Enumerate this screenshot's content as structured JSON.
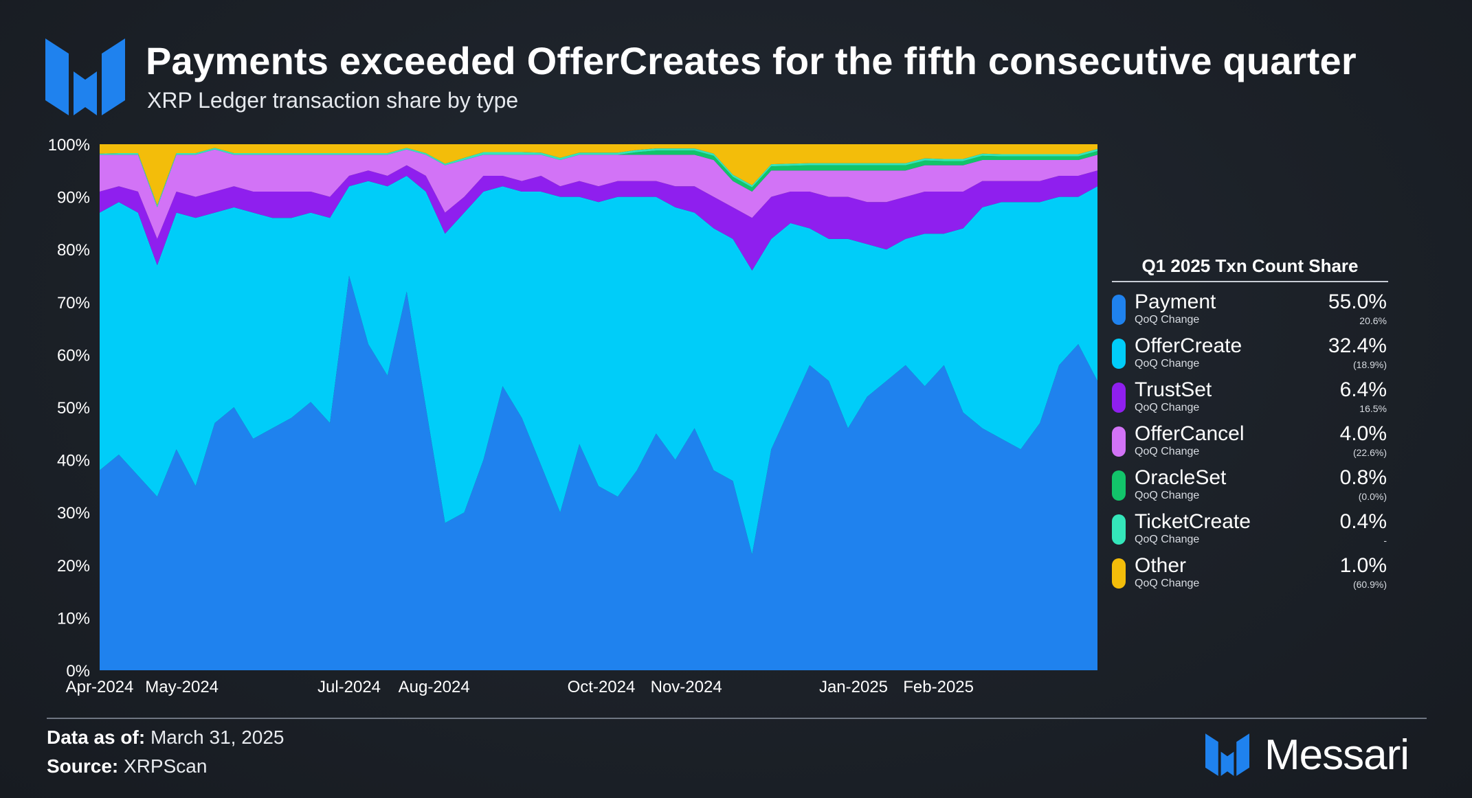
{
  "header": {
    "title": "Payments exceeded OfferCreates for the fifth consecutive quarter",
    "subtitle": "XRP Ledger transaction share by type"
  },
  "legend": {
    "title": "Q1 2025 Txn Count Share",
    "change_label": "QoQ Change",
    "items": [
      {
        "name": "Payment",
        "value": "55.0%",
        "change": "20.6%",
        "color": "#1f82ee"
      },
      {
        "name": "OfferCreate",
        "value": "32.4%",
        "change": "(18.9%)",
        "color": "#00cdf9"
      },
      {
        "name": "TrustSet",
        "value": "6.4%",
        "change": "16.5%",
        "color": "#8f1fee"
      },
      {
        "name": "OfferCancel",
        "value": "4.0%",
        "change": "(22.6%)",
        "color": "#d273f6"
      },
      {
        "name": "OracleSet",
        "value": "0.8%",
        "change": "(0.0%)",
        "color": "#12c46a"
      },
      {
        "name": "TicketCreate",
        "value": "0.4%",
        "change": "-",
        "color": "#34e6ba"
      },
      {
        "name": "Other",
        "value": "1.0%",
        "change": "(60.9%)",
        "color": "#f3bd0a"
      }
    ]
  },
  "footer": {
    "data_label": "Data as of:",
    "data_value": "March 31, 2025",
    "source_label": "Source:",
    "source_value": "XRPScan",
    "brand": "Messari"
  },
  "colors": {
    "brand_blue": "#1f82ee",
    "background": "#1c2128"
  },
  "chart_data": {
    "type": "area",
    "stacked": true,
    "ylim": [
      0,
      100
    ],
    "yticks": [
      "0%",
      "10%",
      "20%",
      "30%",
      "40%",
      "50%",
      "60%",
      "70%",
      "80%",
      "90%",
      "100%"
    ],
    "xticks": [
      "Apr-2024",
      "May-2024",
      "Jul-2024",
      "Aug-2024",
      "Oct-2024",
      "Nov-2024",
      "Jan-2025",
      "Feb-2025"
    ],
    "x_range": [
      "2024-04-01",
      "2025-03-31"
    ],
    "grid": false,
    "x": [
      "2024-04-01",
      "2024-04-08",
      "2024-04-15",
      "2024-04-22",
      "2024-04-29",
      "2024-05-06",
      "2024-05-13",
      "2024-05-20",
      "2024-05-27",
      "2024-06-03",
      "2024-06-10",
      "2024-06-17",
      "2024-06-24",
      "2024-07-01",
      "2024-07-08",
      "2024-07-15",
      "2024-07-22",
      "2024-07-29",
      "2024-08-05",
      "2024-08-12",
      "2024-08-19",
      "2024-08-26",
      "2024-09-02",
      "2024-09-09",
      "2024-09-16",
      "2024-09-23",
      "2024-09-30",
      "2024-10-07",
      "2024-10-14",
      "2024-10-21",
      "2024-10-28",
      "2024-11-04",
      "2024-11-11",
      "2024-11-18",
      "2024-11-25",
      "2024-12-02",
      "2024-12-09",
      "2024-12-16",
      "2024-12-23",
      "2024-12-30",
      "2025-01-06",
      "2025-01-13",
      "2025-01-20",
      "2025-01-27",
      "2025-02-03",
      "2025-02-10",
      "2025-02-17",
      "2025-02-24",
      "2025-03-03",
      "2025-03-10",
      "2025-03-17",
      "2025-03-24",
      "2025-03-31"
    ],
    "series": [
      {
        "name": "Payment",
        "color": "#1f82ee",
        "values": [
          38,
          41,
          37,
          33,
          42,
          35,
          47,
          50,
          44,
          46,
          48,
          51,
          47,
          75,
          62,
          56,
          72,
          50,
          28,
          30,
          40,
          54,
          48,
          39,
          30,
          43,
          35,
          33,
          38,
          45,
          40,
          46,
          38,
          36,
          22,
          42,
          50,
          58,
          55,
          46,
          52,
          55,
          58,
          54,
          58,
          49,
          46,
          44,
          42,
          47,
          58,
          62,
          55
        ]
      },
      {
        "name": "OfferCreate",
        "color": "#00cdf9",
        "values": [
          49,
          48,
          50,
          44,
          45,
          51,
          40,
          38,
          43,
          40,
          38,
          36,
          39,
          17,
          31,
          36,
          22,
          41,
          55,
          57,
          51,
          38,
          43,
          52,
          60,
          47,
          54,
          57,
          52,
          45,
          48,
          41,
          46,
          46,
          54,
          40,
          35,
          26,
          27,
          36,
          29,
          25,
          24,
          29,
          25,
          35,
          42,
          45,
          47,
          42,
          32,
          28,
          37
        ]
      },
      {
        "name": "TrustSet",
        "color": "#8f1fee",
        "values": [
          4,
          3,
          4,
          5,
          4,
          4,
          4,
          4,
          4,
          5,
          5,
          4,
          4,
          2,
          2,
          2,
          2,
          3,
          4,
          3,
          3,
          2,
          2,
          3,
          2,
          3,
          3,
          3,
          3,
          3,
          4,
          5,
          6,
          6,
          10,
          8,
          6,
          7,
          8,
          8,
          8,
          9,
          8,
          8,
          8,
          7,
          5,
          4,
          4,
          4,
          4,
          4,
          3
        ]
      },
      {
        "name": "OfferCancel",
        "color": "#d273f6",
        "values": [
          7,
          6,
          7,
          6,
          7,
          8,
          8,
          6,
          7,
          7,
          7,
          7,
          8,
          4,
          3,
          4,
          3,
          4,
          9,
          7,
          4,
          4,
          5,
          4,
          5,
          5,
          6,
          5,
          5,
          5,
          6,
          6,
          7,
          5,
          5,
          5,
          4,
          4,
          5,
          5,
          6,
          6,
          5,
          5,
          5,
          5,
          4,
          4,
          4,
          4,
          3,
          3,
          3
        ]
      },
      {
        "name": "OracleSet",
        "color": "#12c46a",
        "values": [
          0,
          0,
          0,
          0,
          0,
          0,
          0,
          0,
          0,
          0,
          0,
          0,
          0,
          0,
          0,
          0,
          0,
          0,
          0,
          0,
          0,
          0,
          0,
          0,
          0,
          0,
          0,
          0,
          0.5,
          0.8,
          0.8,
          0.8,
          0.8,
          0.8,
          0.8,
          0.8,
          0.9,
          1.0,
          1.0,
          1.0,
          1.0,
          1.0,
          1.0,
          0.9,
          0.8,
          0.8,
          0.8,
          0.7,
          0.7,
          0.7,
          0.7,
          0.7,
          0.7
        ]
      },
      {
        "name": "TicketCreate",
        "color": "#34e6ba",
        "values": [
          0.2,
          0.3,
          0.3,
          0.4,
          0.3,
          0.3,
          0.3,
          0.3,
          0.3,
          0.3,
          0.3,
          0.3,
          0.3,
          0.3,
          0.3,
          0.3,
          0.3,
          0.3,
          0.3,
          0.4,
          0.5,
          0.5,
          0.5,
          0.4,
          0.4,
          0.4,
          0.4,
          0.4,
          0.4,
          0.4,
          0.4,
          0.4,
          0.4,
          0.4,
          0.4,
          0.4,
          0.4,
          0.4,
          0.4,
          0.4,
          0.4,
          0.4,
          0.4,
          0.4,
          0.4,
          0.4,
          0.4,
          0.4,
          0.4,
          0.4,
          0.4,
          0.4,
          0.4
        ]
      },
      {
        "name": "Other",
        "color": "#f3bd0a",
        "values": [
          1.8,
          1.7,
          1.7,
          11.6,
          1.7,
          1.7,
          0.7,
          1.7,
          1.7,
          1.7,
          1.7,
          1.7,
          1.7,
          1.7,
          1.7,
          1.7,
          0.7,
          1.7,
          3.7,
          2.6,
          1.5,
          1.5,
          1.5,
          1.6,
          2.6,
          1.6,
          1.6,
          1.6,
          1.1,
          0.8,
          0.8,
          0.8,
          1.8,
          5.8,
          7.8,
          3.8,
          3.7,
          3.6,
          3.6,
          3.6,
          3.6,
          3.6,
          3.6,
          2.7,
          2.8,
          2.8,
          1.8,
          1.9,
          1.9,
          2.9,
          2.3,
          1.9,
          1.0
        ]
      }
    ]
  }
}
